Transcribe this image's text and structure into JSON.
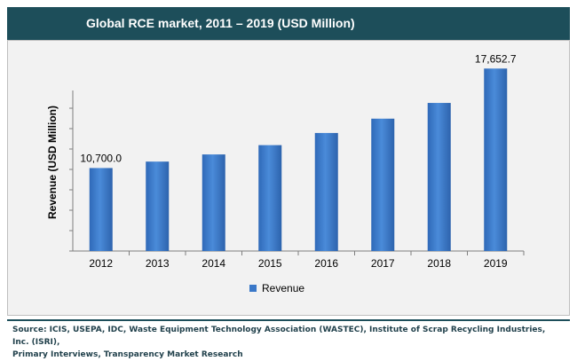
{
  "chart_data": {
    "type": "bar",
    "title": "Global RCE market, 2011 – 2019 (USD Million)",
    "xlabel": "",
    "ylabel": "Revenue (USD Million)",
    "categories": [
      "2012",
      "2013",
      "2014",
      "2015",
      "2016",
      "2017",
      "2018",
      "2019"
    ],
    "series": [
      {
        "name": "Revenue",
        "values": [
          10700.0,
          11150,
          11650,
          12300,
          13150,
          14150,
          15250,
          17652.7
        ],
        "color": "#3a78c8"
      }
    ],
    "data_labels": [
      {
        "category": "2012",
        "text": "10,700.0"
      },
      {
        "category": "2019",
        "text": "17,652.7"
      }
    ],
    "ylim": [
      4900,
      18600
    ],
    "grid": false,
    "legend_position": "bottom"
  },
  "source": {
    "line1": "Source: ICIS, USEPA, IDC, Waste Equipment Technology Association (WASTEC), Institute of Scrap Recycling Industries, Inc. (ISRI),",
    "line2": "Primary Interviews, Transparency Market Research"
  }
}
